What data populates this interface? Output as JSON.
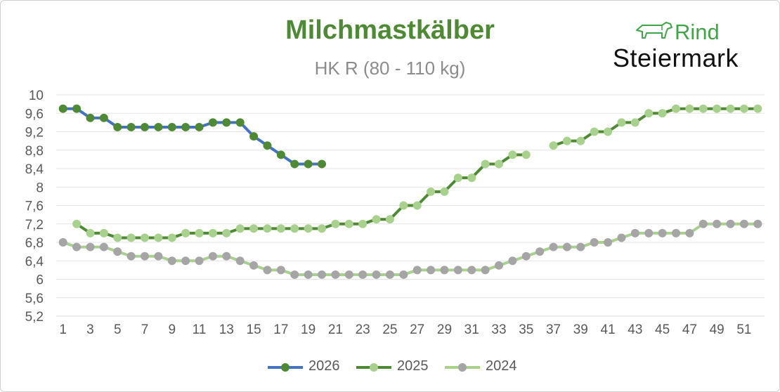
{
  "chart_data": {
    "type": "line",
    "title": "Milchmastkälber",
    "subtitle": "HK R (80 - 110 kg)",
    "xlabel": "",
    "ylabel": "",
    "ylim": [
      5.2,
      10
    ],
    "yticks": [
      "10",
      "9,6",
      "9,2",
      "8,8",
      "8,4",
      "8",
      "7,6",
      "7,2",
      "6,8",
      "6,4",
      "6",
      "5,6",
      "5,2"
    ],
    "xticks": [
      "1",
      "3",
      "5",
      "7",
      "9",
      "11",
      "13",
      "15",
      "17",
      "19",
      "21",
      "23",
      "25",
      "27",
      "29",
      "31",
      "33",
      "35",
      "37",
      "39",
      "41",
      "43",
      "45",
      "47",
      "49",
      "51"
    ],
    "grid": true,
    "legend_position": "bottom",
    "x": [
      1,
      2,
      3,
      4,
      5,
      6,
      7,
      8,
      9,
      10,
      11,
      12,
      13,
      14,
      15,
      16,
      17,
      18,
      19,
      20,
      21,
      22,
      23,
      24,
      25,
      26,
      27,
      28,
      29,
      30,
      31,
      32,
      33,
      34,
      35,
      36,
      37,
      38,
      39,
      40,
      41,
      42,
      43,
      44,
      45,
      46,
      47,
      48,
      49,
      50,
      51,
      52
    ],
    "series": [
      {
        "name": "2026",
        "line_color": "#4472c4",
        "marker_color": "#4e8a34",
        "values": [
          9.7,
          9.7,
          9.5,
          9.5,
          9.3,
          9.3,
          9.3,
          9.3,
          9.3,
          9.3,
          9.3,
          9.4,
          9.4,
          9.4,
          9.1,
          8.9,
          8.7,
          8.5,
          8.5,
          8.5,
          null,
          null,
          null,
          null,
          null,
          null,
          null,
          null,
          null,
          null,
          null,
          null,
          null,
          null,
          null,
          null,
          null,
          null,
          null,
          null,
          null,
          null,
          null,
          null,
          null,
          null,
          null,
          null,
          null,
          null,
          null,
          null
        ]
      },
      {
        "name": "2025",
        "line_color": "#4e8a34",
        "marker_color": "#a9d18e",
        "values": [
          null,
          7.2,
          7.0,
          7.0,
          6.9,
          6.9,
          6.9,
          6.9,
          6.9,
          7.0,
          7.0,
          7.0,
          7.0,
          7.1,
          7.1,
          7.1,
          7.1,
          7.1,
          7.1,
          7.1,
          7.2,
          7.2,
          7.2,
          7.3,
          7.3,
          7.6,
          7.6,
          7.9,
          7.9,
          8.2,
          8.2,
          8.5,
          8.5,
          8.7,
          8.7,
          null,
          8.9,
          9.0,
          9.0,
          9.2,
          9.2,
          9.4,
          9.4,
          9.6,
          9.6,
          9.7,
          9.7,
          9.7,
          9.7,
          9.7,
          9.7,
          9.7
        ]
      },
      {
        "name": "2024",
        "line_color": "#a9d18e",
        "marker_color": "#a5a5a5",
        "values": [
          6.8,
          6.7,
          6.7,
          6.7,
          6.6,
          6.5,
          6.5,
          6.5,
          6.4,
          6.4,
          6.4,
          6.5,
          6.5,
          6.4,
          6.3,
          6.2,
          6.2,
          6.1,
          6.1,
          6.1,
          6.1,
          6.1,
          6.1,
          6.1,
          6.1,
          6.1,
          6.2,
          6.2,
          6.2,
          6.2,
          6.2,
          6.2,
          6.3,
          6.4,
          6.5,
          6.6,
          6.7,
          6.7,
          6.7,
          6.8,
          6.8,
          6.9,
          7.0,
          7.0,
          7.0,
          7.0,
          7.0,
          7.2,
          7.2,
          7.2,
          7.2,
          7.2
        ]
      }
    ]
  },
  "logo": {
    "line1": "Rind",
    "line2": "Steiermark",
    "icon": "cow-icon",
    "color_green": "#3fa548",
    "color_dark": "#111111"
  }
}
